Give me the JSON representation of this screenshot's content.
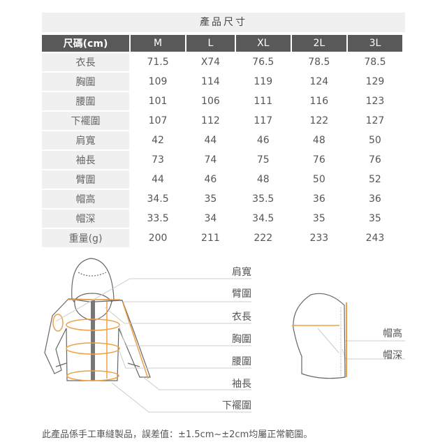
{
  "title": "產品尺寸",
  "table": {
    "headers": [
      "尺碼(cm)",
      "M",
      "L",
      "XL",
      "2L",
      "3L"
    ],
    "rows": [
      [
        "衣長",
        "71.5",
        "X74",
        "76.5",
        "78.5",
        "78.5"
      ],
      [
        "胸圍",
        "109",
        "114",
        "119",
        "124",
        "129"
      ],
      [
        "腰圍",
        "101",
        "106",
        "111",
        "116",
        "123"
      ],
      [
        "下襬圍",
        "107",
        "112",
        "117",
        "122",
        "127"
      ],
      [
        "肩寬",
        "42",
        "44",
        "46",
        "48",
        "50"
      ],
      [
        "袖長",
        "73",
        "74",
        "75",
        "76",
        "76"
      ],
      [
        "臂圍",
        "44",
        "46",
        "48",
        "50",
        "52"
      ],
      [
        "帽高",
        "34.5",
        "35",
        "35.5",
        "36",
        "36"
      ],
      [
        "帽深",
        "33.5",
        "34",
        "34.5",
        "35",
        "35"
      ],
      [
        "重量(g)",
        "200",
        "211",
        "222",
        "233",
        "243"
      ]
    ]
  },
  "diagram": {
    "jacket_labels": [
      "肩寬",
      "臂圍",
      "衣長",
      "胸圍",
      "腰圍",
      "袖長",
      "下襬圍"
    ],
    "hood_labels": [
      "帽高",
      "帽深"
    ],
    "accent_color": "#f0a040"
  },
  "note": "此產品係手工車縫製品，誤差值：±1.5cm~±2cm均屬正常範圍。"
}
